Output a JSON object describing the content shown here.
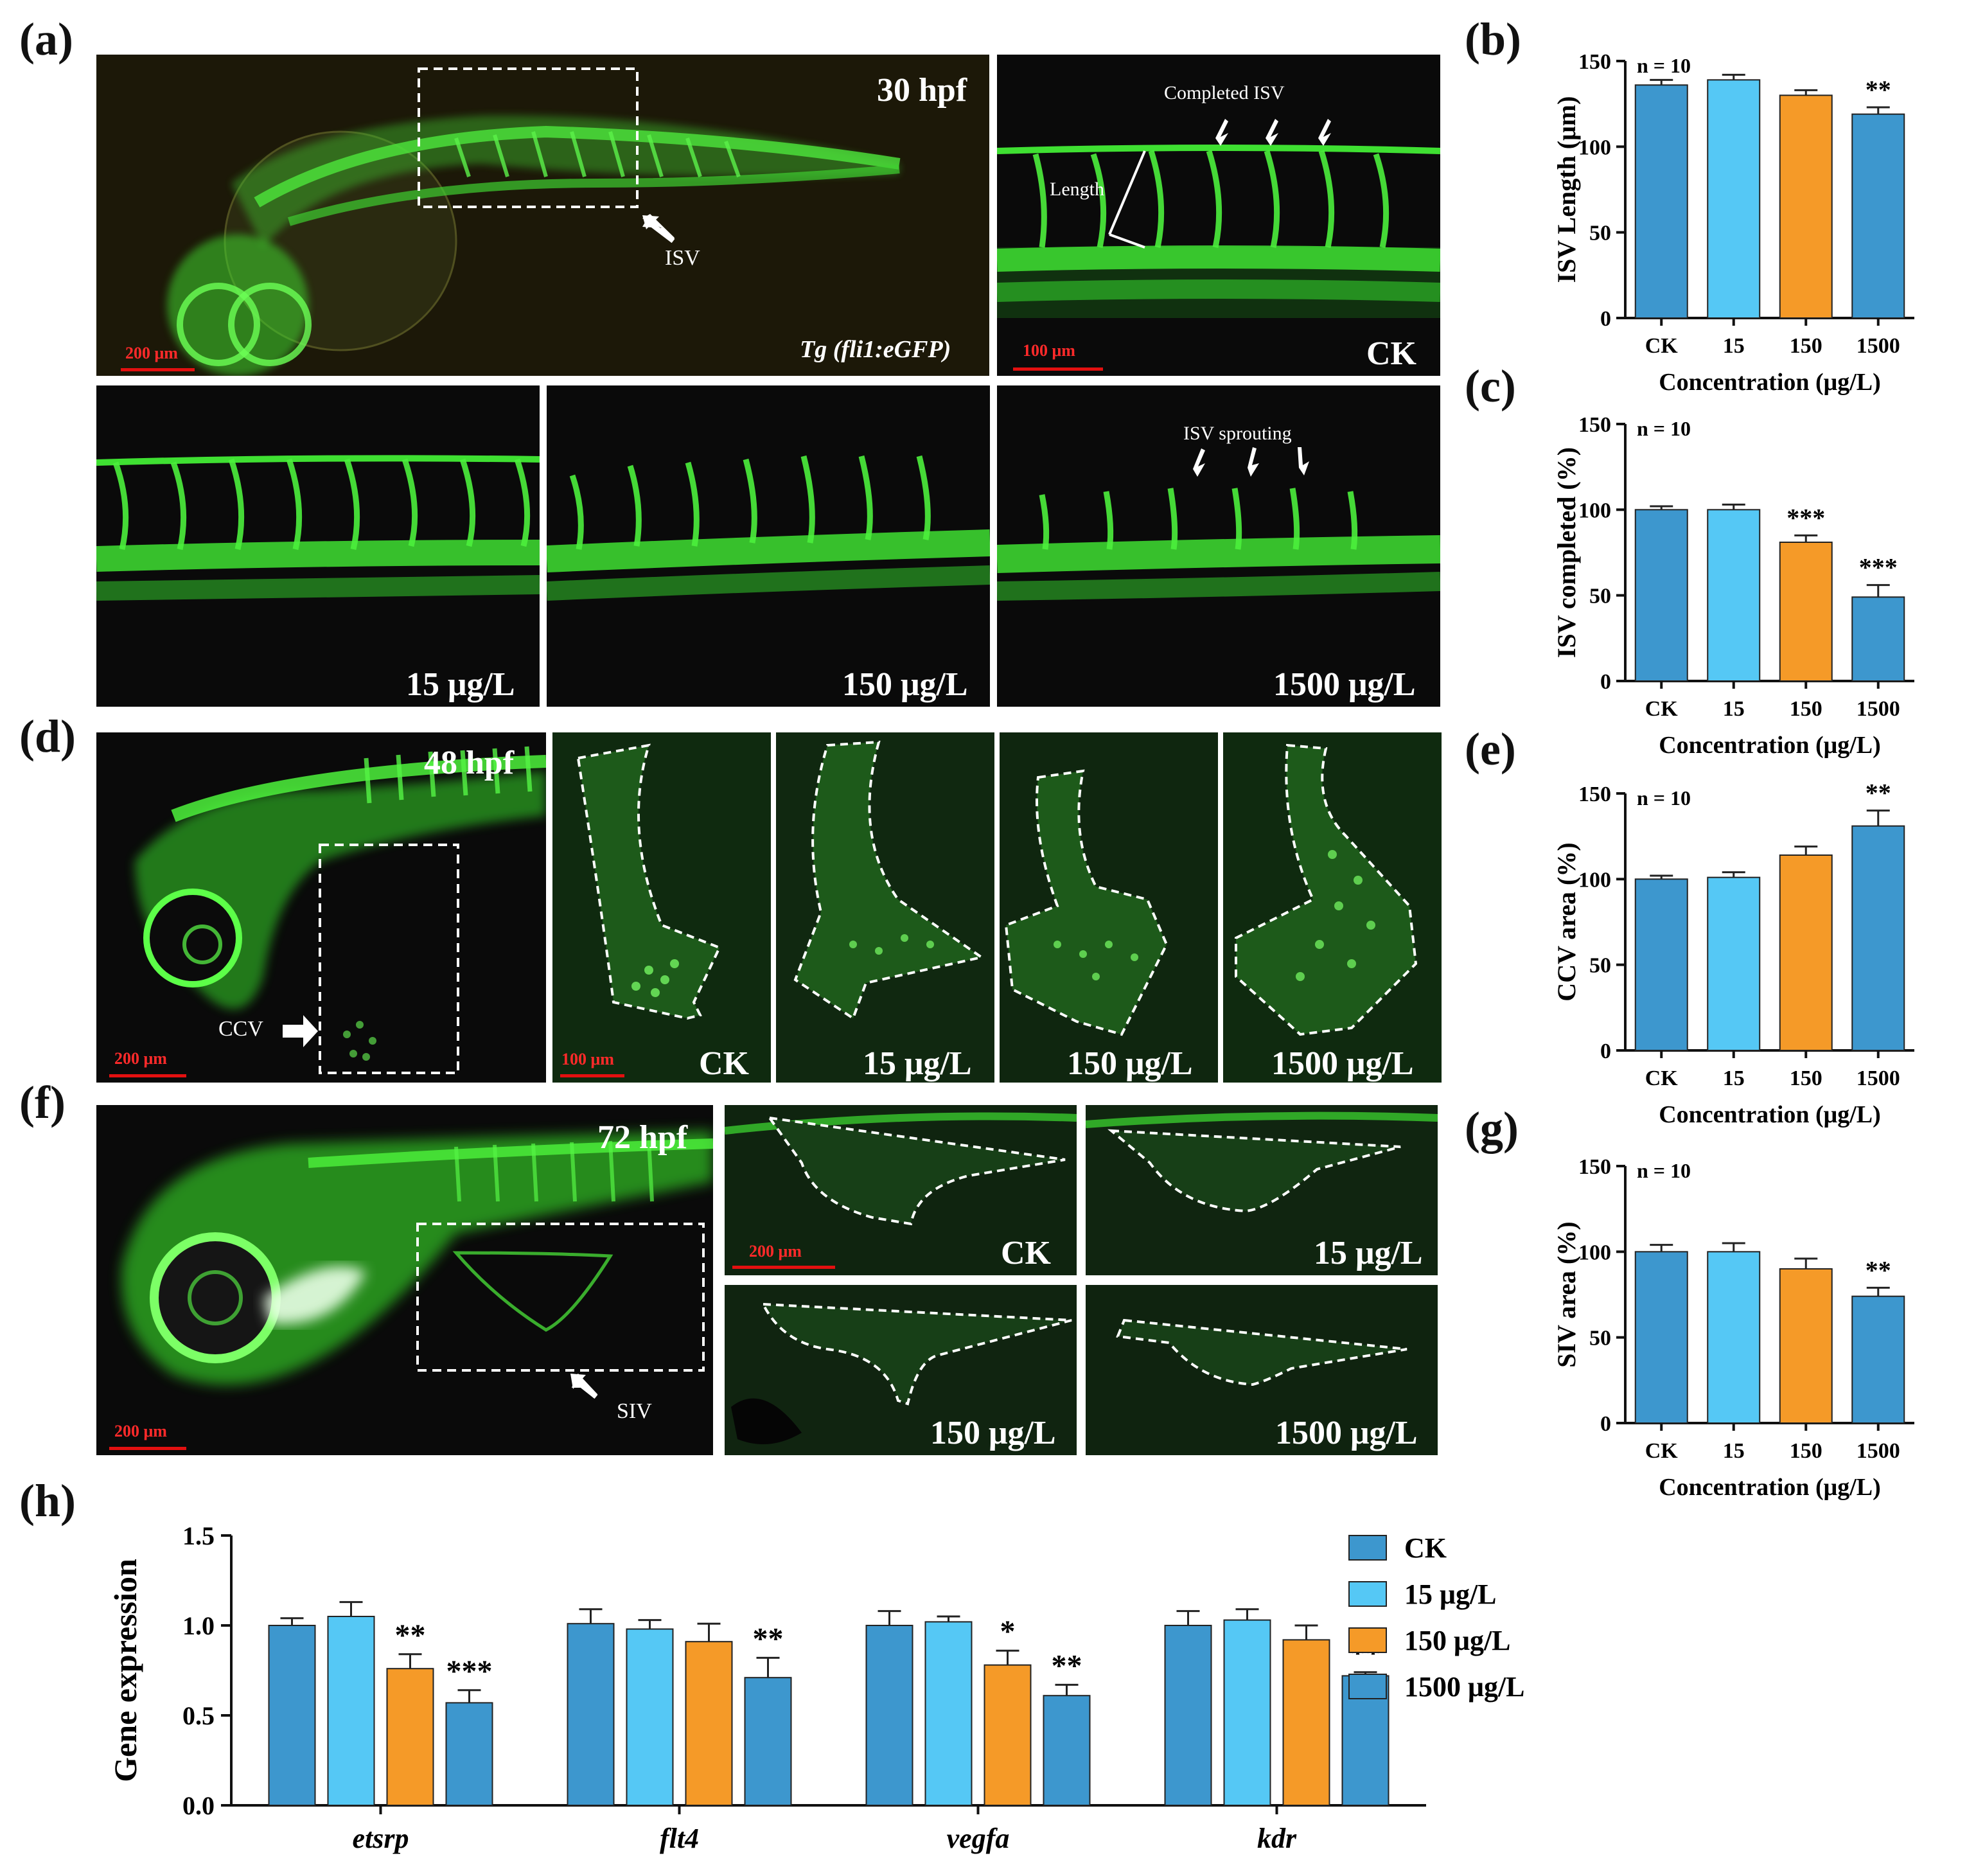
{
  "labels": {
    "a": "(a)",
    "b": "(b)",
    "c": "(c)",
    "d": "(d)",
    "e": "(e)",
    "f": "(f)",
    "g": "(g)",
    "h": "(h)"
  },
  "panel_a": {
    "stage": "30 hpf",
    "isv_label": "ISV",
    "transgenic": "Tg (fli1:eGFP)",
    "scale_main": "200 μm",
    "zoom_scale": "100 μm",
    "completed_isv": "Completed ISV",
    "length": "Length",
    "ck": "CK",
    "c15": "15 μg/L",
    "c150": "150 μg/L",
    "c1500": "1500 μg/L",
    "sprouting": "ISV sprouting"
  },
  "panel_d": {
    "stage": "48 hpf",
    "ccv": "CCV",
    "scale_main": "200 μm",
    "scale_zoom": "100 μm",
    "ck": "CK",
    "c15": "15 μg/L",
    "c150": "150 μg/L",
    "c1500": "1500 μg/L"
  },
  "panel_f": {
    "stage": "72 hpf",
    "siv": "SIV",
    "scale_main": "200 μm",
    "scale_zoom": "200 μm",
    "ck": "CK",
    "c15": "15 μg/L",
    "c150": "150 μg/L",
    "c1500": "1500 μg/L"
  },
  "colors": {
    "ck": "#3d97ce",
    "c15": "#55c8f5",
    "c150": "#f59a28",
    "c1500": "#3d97ce",
    "gfp": "#2bd62b"
  },
  "chart_data": [
    {
      "id": "b",
      "type": "bar",
      "categories": [
        "CK",
        "15",
        "150",
        "1500"
      ],
      "values": [
        136,
        139,
        130,
        119
      ],
      "errors": [
        3,
        3,
        3,
        4
      ],
      "significance": [
        "",
        "",
        "",
        "**"
      ],
      "annotation": "n = 10",
      "ylabel": "ISV Length (μm)",
      "xlabel": "Concentration (μg/L)",
      "ylim": [
        0,
        150
      ],
      "yticks": [
        0,
        50,
        100,
        150
      ]
    },
    {
      "id": "c",
      "type": "bar",
      "categories": [
        "CK",
        "15",
        "150",
        "1500"
      ],
      "values": [
        100,
        100,
        81,
        49
      ],
      "errors": [
        2,
        3,
        4,
        7
      ],
      "significance": [
        "",
        "",
        "***",
        "***"
      ],
      "annotation": "n = 10",
      "ylabel": "ISV completed (%)",
      "xlabel": "Concentration (μg/L)",
      "ylim": [
        0,
        150
      ],
      "yticks": [
        0,
        50,
        100,
        150
      ]
    },
    {
      "id": "e",
      "type": "bar",
      "categories": [
        "CK",
        "15",
        "150",
        "1500"
      ],
      "values": [
        100,
        101,
        114,
        131
      ],
      "errors": [
        2,
        3,
        5,
        9
      ],
      "significance": [
        "",
        "",
        "",
        "**"
      ],
      "annotation": "n = 10",
      "ylabel": "CCV area (%)",
      "xlabel": "Concentration (μg/L)",
      "ylim": [
        0,
        150
      ],
      "yticks": [
        0,
        50,
        100,
        150
      ]
    },
    {
      "id": "g",
      "type": "bar",
      "categories": [
        "CK",
        "15",
        "150",
        "1500"
      ],
      "values": [
        100,
        100,
        90,
        74
      ],
      "errors": [
        4,
        5,
        6,
        5
      ],
      "significance": [
        "",
        "",
        "",
        "**"
      ],
      "annotation": "n = 10",
      "ylabel": "SIV area (%)",
      "xlabel": "Concentration (μg/L)",
      "ylim": [
        0,
        150
      ],
      "yticks": [
        0,
        50,
        100,
        150
      ]
    },
    {
      "id": "h",
      "type": "bar",
      "categories": [
        "etsrp",
        "flt4",
        "vegfa",
        "kdr"
      ],
      "series": [
        {
          "name": "CK",
          "values": [
            1.0,
            1.01,
            1.0,
            1.0
          ],
          "errors": [
            0.04,
            0.08,
            0.08,
            0.08
          ],
          "significance": [
            "",
            "",
            "",
            ""
          ]
        },
        {
          "name": "15 μg/L",
          "values": [
            1.05,
            0.98,
            1.02,
            1.03
          ],
          "errors": [
            0.08,
            0.05,
            0.03,
            0.06
          ],
          "significance": [
            "",
            "",
            "",
            ""
          ]
        },
        {
          "name": "150 μg/L",
          "values": [
            0.76,
            0.91,
            0.78,
            0.92
          ],
          "errors": [
            0.08,
            0.1,
            0.08,
            0.08
          ],
          "significance": [
            "**",
            "",
            "*",
            ""
          ]
        },
        {
          "name": "1500 μg/L",
          "values": [
            0.57,
            0.71,
            0.61,
            0.72
          ],
          "errors": [
            0.07,
            0.11,
            0.06,
            0.02
          ],
          "significance": [
            "***",
            "**",
            "**",
            "**"
          ]
        }
      ],
      "ylabel": "Gene expression",
      "xlabel": "",
      "ylim": [
        0,
        1.5
      ],
      "yticks": [
        "0.0",
        "0.5",
        "1.0",
        "1.5"
      ],
      "legend": "right"
    }
  ]
}
